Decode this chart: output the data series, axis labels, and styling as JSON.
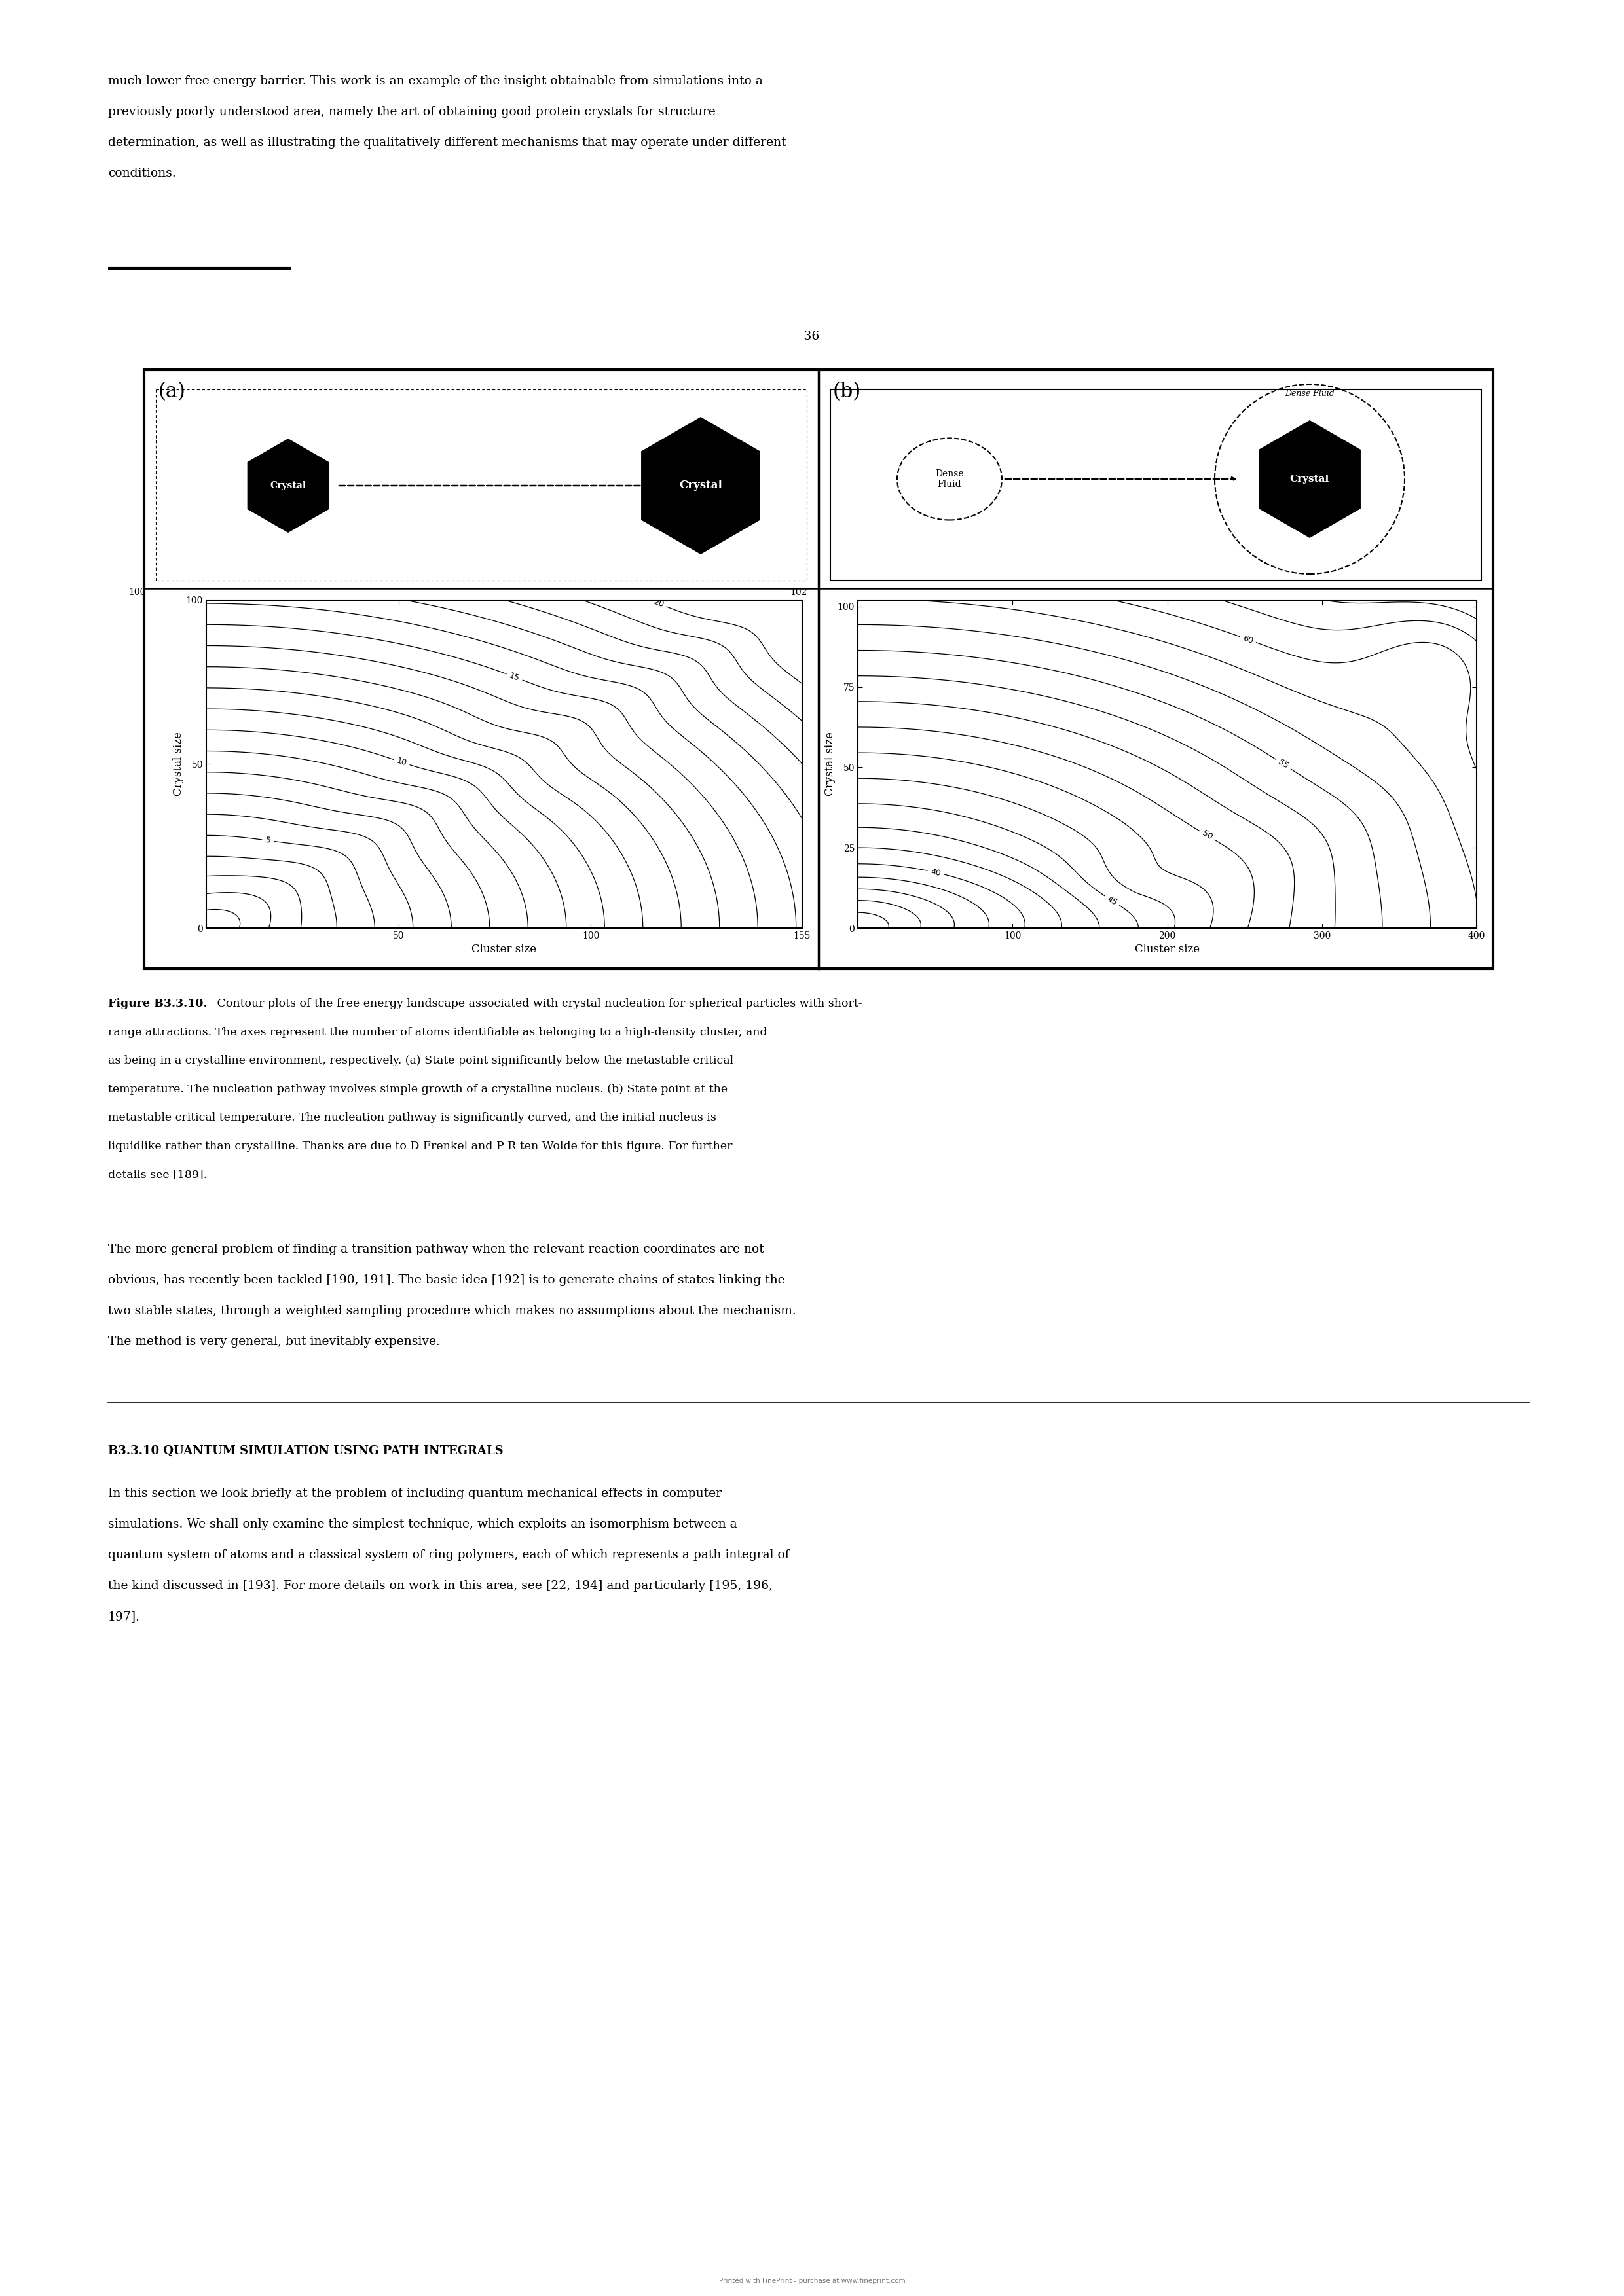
{
  "page_number": "-36-",
  "top_text_lines": [
    "much lower free energy barrier. This work is an example of the insight obtainable from simulations into a",
    "previously poorly understood area, namely the art of obtaining good protein crystals for structure",
    "determination, as well as illustrating the qualitatively different mechanisms that may operate under different",
    "conditions."
  ],
  "figure_caption_bold": "Figure B3.3.10.",
  "figure_caption_rest": " Contour plots of the free energy landscape associated with crystal nucleation for spherical particles with short-range attractions. The axes represent the number of atoms identifiable as belonging to a high-density cluster, and as being in a crystalline environment, respectively. (a) State point significantly below the metastable critical temperature. The nucleation pathway involves simple growth of a crystalline nucleus. (b) State point at the metastable critical temperature. The nucleation pathway is significantly curved, and the initial nucleus is liquidlike rather than crystalline. Thanks are due to D Frenkel and P R ten Wolde for this figure. For further details see [189].",
  "bottom_text_lines": [
    "The more general problem of finding a transition pathway when the relevant reaction coordinates are not",
    "obvious, has recently been tackled [190, 191]. The basic idea [192] is to generate chains of states linking the",
    "two stable states, through a weighted sampling procedure which makes no assumptions about the mechanism.",
    "The method is very general, but inevitably expensive."
  ],
  "section_title": "B3.3.10 QUANTUM SIMULATION USING PATH INTEGRALS",
  "section_text_lines": [
    "In this section we look briefly at the problem of including quantum mechanical effects in computer",
    "simulations. We shall only examine the simplest technique, which exploits an isomorphism between a",
    "quantum system of atoms and a classical system of ring polymers, each of which represents a path integral of",
    "the kind discussed in [193]. For more details on work in this area, see [22, 194] and particularly [195, 196,",
    "197]."
  ],
  "panel_a_xlabel": "Cluster size",
  "panel_a_ylabel": "Crystal size",
  "panel_b_xlabel": "Cluster size",
  "panel_b_ylabel": "Crystal size",
  "background_color": "#ffffff"
}
